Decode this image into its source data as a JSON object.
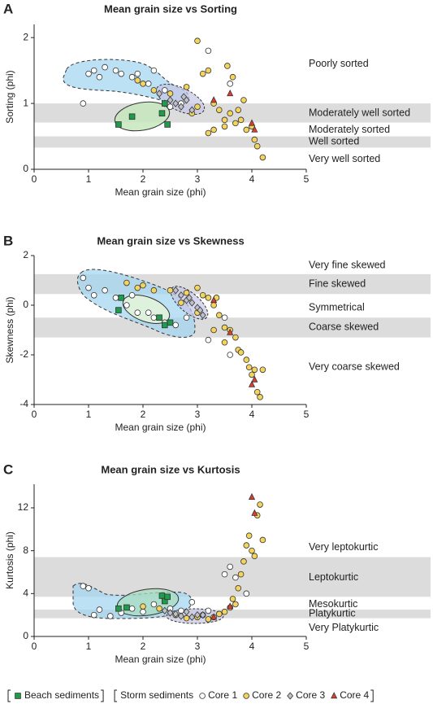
{
  "chart_data": [
    {
      "type": "scatter",
      "panel_label": "A",
      "title": "Mean grain size vs Sorting",
      "x_label": "Mean grain size (phi)",
      "y_label": "Sorting (phi)",
      "xlim": [
        0,
        5
      ],
      "xticks": [
        0,
        1,
        2,
        3,
        4,
        5
      ],
      "ylim": [
        0,
        2.2
      ],
      "yticks": [
        0,
        1,
        2
      ],
      "classes": [
        {
          "label": "Poorly sorted",
          "y": 1.6
        },
        {
          "label": "Moderately well sorted",
          "y": 0.85,
          "band": [
            0.71,
            1.0
          ]
        },
        {
          "label": "Moderately sorted",
          "y": 0.6
        },
        {
          "label": "Well sorted",
          "y": 0.42,
          "band": [
            0.33,
            0.5
          ]
        },
        {
          "label": "Very well sorted",
          "y": 0.15
        }
      ],
      "series": [
        {
          "name": "Core 1",
          "color": "#ffffff",
          "marker": "circle",
          "x": [
            0.9,
            1.0,
            1.1,
            1.2,
            1.3,
            1.5,
            1.6,
            1.8,
            1.9,
            2.1,
            2.2,
            2.4,
            3.2,
            3.6,
            2.7,
            2.5
          ],
          "y": [
            1.0,
            1.45,
            1.5,
            1.4,
            1.55,
            1.5,
            1.45,
            1.4,
            1.45,
            1.3,
            1.5,
            1.2,
            1.8,
            1.3,
            1.0,
            0.95
          ]
        },
        {
          "name": "Core 2",
          "color": "#f3d45c",
          "marker": "circle",
          "x": [
            1.9,
            2.0,
            2.2,
            2.5,
            2.8,
            3.0,
            3.1,
            3.2,
            3.3,
            3.4,
            3.5,
            3.55,
            3.6,
            3.65,
            3.7,
            3.75,
            3.8,
            3.85,
            3.9,
            4.0,
            4.05,
            4.1,
            4.2,
            3.2,
            3.3,
            3.5,
            2.9,
            3.0
          ],
          "y": [
            1.35,
            1.3,
            1.2,
            1.15,
            1.25,
            1.95,
            1.45,
            1.5,
            1.0,
            0.9,
            0.75,
            1.57,
            0.85,
            1.4,
            0.7,
            0.9,
            0.75,
            1.05,
            0.6,
            0.65,
            0.45,
            0.35,
            0.18,
            0.55,
            0.6,
            0.65,
            0.85,
            0.95
          ]
        },
        {
          "name": "Core 3",
          "color": "#c0c0c8",
          "marker": "diamond",
          "x": [
            2.3,
            2.5,
            2.6,
            2.7,
            2.75,
            2.8,
            2.9,
            2.4
          ],
          "y": [
            1.15,
            1.05,
            1.0,
            0.95,
            1.1,
            1.05,
            0.9,
            1.0
          ]
        },
        {
          "name": "Core 4",
          "color": "#e03c31",
          "marker": "triangle",
          "x": [
            3.3,
            3.6,
            4.0,
            4.05
          ],
          "y": [
            1.05,
            1.15,
            0.7,
            0.6
          ]
        },
        {
          "name": "Beach sediments",
          "color": "#1e9b4b",
          "marker": "square",
          "x": [
            1.55,
            1.8,
            2.35,
            2.45,
            2.4
          ],
          "y": [
            0.68,
            0.8,
            0.85,
            0.68,
            1.0
          ]
        }
      ]
    },
    {
      "type": "scatter",
      "panel_label": "B",
      "title": "Mean grain size vs Skewness",
      "x_label": "Mean grain size (phi)",
      "y_label": "Skewness (phi)",
      "xlim": [
        0,
        5
      ],
      "xticks": [
        0,
        1,
        2,
        3,
        4,
        5
      ],
      "ylim": [
        -4,
        2
      ],
      "yticks": [
        -4,
        -2,
        0,
        2
      ],
      "classes": [
        {
          "label": "Very fine skewed",
          "y": 1.6
        },
        {
          "label": "Fine skewed",
          "y": 0.85,
          "band": [
            0.45,
            1.25
          ]
        },
        {
          "label": "Symmetrical",
          "y": -0.1
        },
        {
          "label": "Coarse skewed",
          "y": -0.9,
          "band": [
            -1.3,
            -0.5
          ]
        },
        {
          "label": "Very coarse skewed",
          "y": -2.5
        }
      ],
      "series": [
        {
          "name": "Core 1",
          "color": "#ffffff",
          "marker": "circle",
          "x": [
            0.9,
            1.0,
            1.1,
            1.3,
            1.5,
            1.7,
            1.9,
            2.1,
            2.2,
            2.4,
            2.6,
            2.8,
            3.2,
            3.5,
            3.6,
            1.8
          ],
          "y": [
            1.1,
            0.7,
            0.4,
            0.6,
            0.3,
            0.0,
            -0.3,
            -0.3,
            -0.5,
            -0.7,
            -0.8,
            -0.5,
            -1.4,
            -0.5,
            -2.0,
            0.4
          ]
        },
        {
          "name": "Core 2",
          "color": "#f3d45c",
          "marker": "circle",
          "x": [
            1.7,
            1.9,
            2.0,
            2.2,
            2.5,
            2.7,
            2.8,
            3.0,
            3.1,
            3.2,
            3.3,
            3.35,
            3.4,
            3.5,
            3.6,
            3.7,
            3.75,
            3.8,
            3.9,
            3.95,
            4.0,
            4.05,
            4.1,
            4.15,
            4.2,
            3.3,
            3.5,
            3.0
          ],
          "y": [
            0.9,
            0.7,
            0.8,
            0.6,
            0.6,
            0.1,
            0.5,
            0.7,
            0.4,
            0.3,
            0.0,
            0.3,
            -0.4,
            -0.9,
            -1.0,
            -1.3,
            -1.8,
            -1.9,
            -2.2,
            -2.5,
            -2.8,
            -2.6,
            -3.5,
            -3.7,
            -2.6,
            -1.0,
            -1.5,
            -0.3
          ]
        },
        {
          "name": "Core 3",
          "color": "#c0c0c8",
          "marker": "diamond",
          "x": [
            2.6,
            2.7,
            2.8,
            2.9,
            3.0,
            3.05,
            3.1,
            2.85
          ],
          "y": [
            0.6,
            0.4,
            0.2,
            0.1,
            -0.1,
            -0.2,
            -0.4,
            0.3
          ]
        },
        {
          "name": "Core 4",
          "color": "#e03c31",
          "marker": "triangle",
          "x": [
            3.3,
            3.6,
            4.0,
            4.05
          ],
          "y": [
            0.2,
            -1.1,
            -3.2,
            -3.0
          ]
        },
        {
          "name": "Beach sediments",
          "color": "#1e9b4b",
          "marker": "square",
          "x": [
            1.55,
            1.6,
            2.3,
            2.4,
            2.5
          ],
          "y": [
            -0.2,
            0.3,
            -0.5,
            -0.8,
            -0.7
          ]
        }
      ]
    },
    {
      "type": "scatter",
      "panel_label": "C",
      "title": "Mean grain size vs Kurtosis",
      "x_label": "Mean grain size (phi)",
      "y_label": "Kurtosis (phi)",
      "xlim": [
        0,
        5
      ],
      "xticks": [
        0,
        1,
        2,
        3,
        4,
        5
      ],
      "ylim": [
        0,
        14.2
      ],
      "yticks": [
        0,
        4,
        8,
        12
      ],
      "classes": [
        {
          "label": "Very leptokurtic",
          "y": 8.3
        },
        {
          "label": "Leptokurtic",
          "y": 5.5,
          "band": [
            3.7,
            7.4
          ]
        },
        {
          "label": "Mesokurtic",
          "y": 3.0
        },
        {
          "label": "Platykurtic",
          "y": 2.1,
          "band": [
            1.7,
            2.5
          ]
        },
        {
          "label": "Very Platykurtic",
          "y": 0.8
        }
      ],
      "series": [
        {
          "name": "Core 1",
          "color": "#ffffff",
          "marker": "circle",
          "x": [
            0.9,
            1.0,
            1.1,
            1.2,
            1.4,
            1.6,
            1.8,
            2.0,
            2.2,
            2.5,
            2.7,
            2.9,
            3.2,
            3.5,
            3.6,
            3.7,
            3.9
          ],
          "y": [
            4.7,
            4.5,
            2.0,
            2.5,
            1.9,
            2.2,
            2.6,
            2.3,
            3.0,
            2.6,
            2.4,
            3.2,
            2.4,
            5.8,
            6.5,
            5.5,
            4.0
          ]
        },
        {
          "name": "Core 2",
          "color": "#f3d45c",
          "marker": "circle",
          "x": [
            2.0,
            2.3,
            2.6,
            2.8,
            3.0,
            3.1,
            3.3,
            3.5,
            3.6,
            3.65,
            3.7,
            3.75,
            3.8,
            3.85,
            3.9,
            3.95,
            4.0,
            4.05,
            4.1,
            4.15,
            4.2,
            3.4,
            3.2
          ],
          "y": [
            2.8,
            2.6,
            2.0,
            1.7,
            1.8,
            2.0,
            1.8,
            2.3,
            2.7,
            3.5,
            3.0,
            4.5,
            5.8,
            7.0,
            8.5,
            9.4,
            8.0,
            7.5,
            11.3,
            12.3,
            9.0,
            2.1,
            1.6
          ]
        },
        {
          "name": "Core 3",
          "color": "#c0c0c8",
          "marker": "diamond",
          "x": [
            2.5,
            2.6,
            2.7,
            2.8,
            2.9,
            3.0,
            3.1,
            2.4
          ],
          "y": [
            2.2,
            2.1,
            1.9,
            2.3,
            1.8,
            2.0,
            2.0,
            2.4
          ]
        },
        {
          "name": "Core 4",
          "color": "#e03c31",
          "marker": "triangle",
          "x": [
            3.3,
            3.6,
            4.0,
            4.05
          ],
          "y": [
            1.8,
            2.8,
            13.0,
            11.5
          ]
        },
        {
          "name": "Beach sediments",
          "color": "#1e9b4b",
          "marker": "square",
          "x": [
            1.55,
            1.7,
            2.35,
            2.4,
            2.45
          ],
          "y": [
            2.6,
            2.7,
            3.8,
            3.3,
            3.7
          ]
        }
      ]
    }
  ],
  "legend": {
    "group_label": "Storm sediments"
  }
}
